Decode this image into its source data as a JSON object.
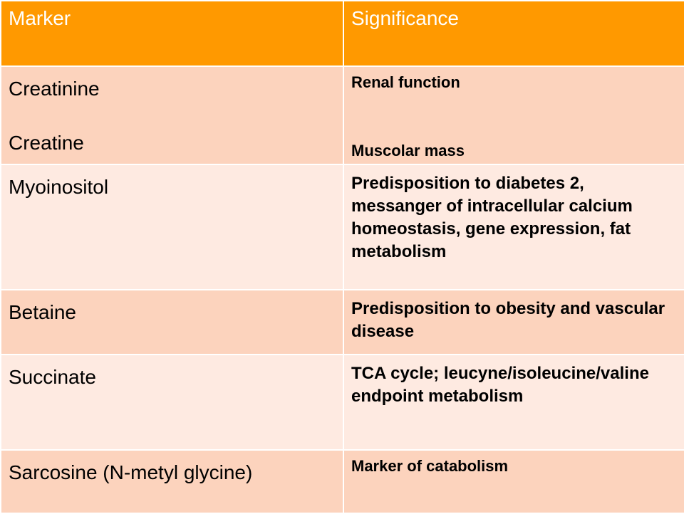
{
  "table": {
    "headers": {
      "marker": "Marker",
      "significance": "Significance"
    },
    "rows": [
      {
        "markers": [
          "Creatinine",
          "Creatine"
        ],
        "significance": [
          "Renal function",
          "Muscolar mass"
        ]
      },
      {
        "markers": [
          "Myoinositol"
        ],
        "significance": [
          "Predisposition to diabetes 2, messanger of intracellular calcium homeostasis, gene expression, fat metabolism"
        ]
      },
      {
        "markers": [
          "Betaine"
        ],
        "significance": [
          "Predisposition to obesity and vascular disease"
        ]
      },
      {
        "markers": [
          "Succinate"
        ],
        "significance": [
          "TCA cycle; leucyne/isoleucine/valine endpoint metabolism"
        ]
      },
      {
        "markers": [
          "Sarcosine (N-metyl glycine)"
        ],
        "significance": [
          "Marker of catabolism"
        ]
      }
    ]
  },
  "colors": {
    "header_bg": "#ff9900",
    "header_text": "#ffffff",
    "row_dark": "#fcd3bd",
    "row_light": "#feeae1",
    "body_text": "#000000"
  }
}
